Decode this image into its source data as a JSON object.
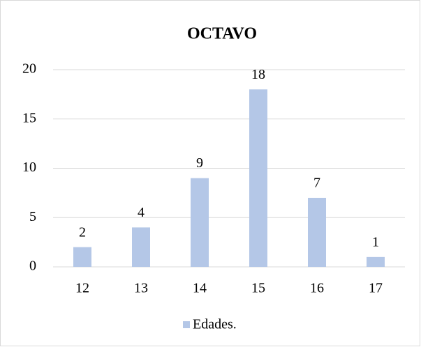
{
  "chart_data": {
    "type": "bar",
    "title": "OCTAVO",
    "categories": [
      "12",
      "13",
      "14",
      "15",
      "16",
      "17"
    ],
    "series": [
      {
        "name": "Edades.",
        "color": "#b4c7e7",
        "values": [
          2,
          4,
          9,
          18,
          7,
          1
        ]
      }
    ],
    "ylim": [
      0,
      20
    ],
    "yticks": [
      0,
      5,
      10,
      15,
      20
    ],
    "grid": true,
    "legend": "bottom"
  }
}
